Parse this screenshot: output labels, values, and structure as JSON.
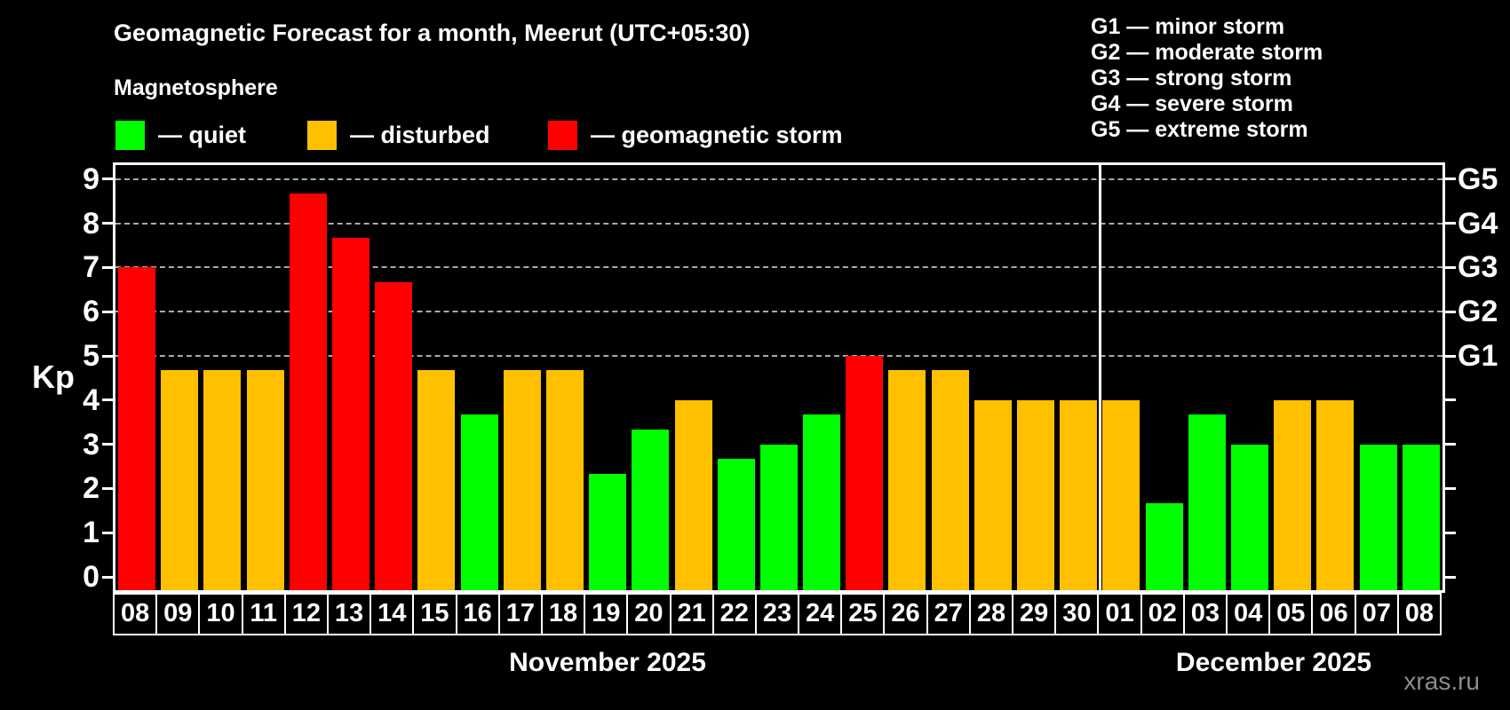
{
  "title": "Geomagnetic Forecast for a month, Meerut (UTC+05:30)",
  "subtitle": "Magnetosphere",
  "legend": {
    "quiet_label": "— quiet",
    "disturbed_label": "— disturbed",
    "storm_label": "— geomagnetic storm"
  },
  "status_colors": {
    "quiet": "#00ff00",
    "disturbed": "#ffc000",
    "storm": "#ff0000"
  },
  "g_scale_legend": {
    "line1": "G1 — minor storm",
    "line2": "G2 — moderate storm",
    "line3": "G3 — strong storm",
    "line4": "G4 — severe storm",
    "line5": "G5 — extreme storm"
  },
  "y_axis": {
    "label": "Kp",
    "ticks": [
      0,
      1,
      2,
      3,
      4,
      5,
      6,
      7,
      8,
      9
    ]
  },
  "right_axis": {
    "labels": [
      {
        "text": "G1",
        "kp": 5
      },
      {
        "text": "G2",
        "kp": 6
      },
      {
        "text": "G3",
        "kp": 7
      },
      {
        "text": "G4",
        "kp": 8
      },
      {
        "text": "G5",
        "kp": 9
      }
    ]
  },
  "months": {
    "november": {
      "label": "November 2025",
      "day_count": 23
    },
    "december": {
      "label": "December 2025",
      "day_count": 8
    }
  },
  "watermark": "xras.ru",
  "chart_data": {
    "type": "bar",
    "title": "Geomagnetic Forecast for a month, Meerut (UTC+05:30)",
    "xlabel": "",
    "ylabel": "Kp",
    "ylim": [
      0,
      9
    ],
    "grid": "dashed horizontal gridlines only at Kp 5,6,7,8,9 (G1..G5 storm levels)",
    "legend_position": "top",
    "categories": [
      "08",
      "09",
      "10",
      "11",
      "12",
      "13",
      "14",
      "15",
      "16",
      "17",
      "18",
      "19",
      "20",
      "21",
      "22",
      "23",
      "24",
      "25",
      "26",
      "27",
      "28",
      "29",
      "30",
      "01",
      "02",
      "03",
      "04",
      "05",
      "06",
      "07",
      "08"
    ],
    "values": [
      7.0,
      4.67,
      4.67,
      4.67,
      8.67,
      7.67,
      6.67,
      4.67,
      3.67,
      4.67,
      4.67,
      2.33,
      3.33,
      4.0,
      2.67,
      3.0,
      3.67,
      5.0,
      4.67,
      4.67,
      4.0,
      4.0,
      4.0,
      4.0,
      1.67,
      3.67,
      3.0,
      4.0,
      4.0,
      3.0,
      3.0
    ],
    "statuses": [
      "storm",
      "disturbed",
      "disturbed",
      "disturbed",
      "storm",
      "storm",
      "storm",
      "disturbed",
      "quiet",
      "disturbed",
      "disturbed",
      "quiet",
      "quiet",
      "disturbed",
      "quiet",
      "quiet",
      "quiet",
      "storm",
      "disturbed",
      "disturbed",
      "disturbed",
      "disturbed",
      "disturbed",
      "disturbed",
      "quiet",
      "quiet",
      "quiet",
      "disturbed",
      "disturbed",
      "quiet",
      "quiet"
    ],
    "month_of_bar": [
      "Nov",
      "Nov",
      "Nov",
      "Nov",
      "Nov",
      "Nov",
      "Nov",
      "Nov",
      "Nov",
      "Nov",
      "Nov",
      "Nov",
      "Nov",
      "Nov",
      "Nov",
      "Nov",
      "Nov",
      "Nov",
      "Nov",
      "Nov",
      "Nov",
      "Nov",
      "Nov",
      "Dec",
      "Dec",
      "Dec",
      "Dec",
      "Dec",
      "Dec",
      "Dec",
      "Dec"
    ]
  }
}
